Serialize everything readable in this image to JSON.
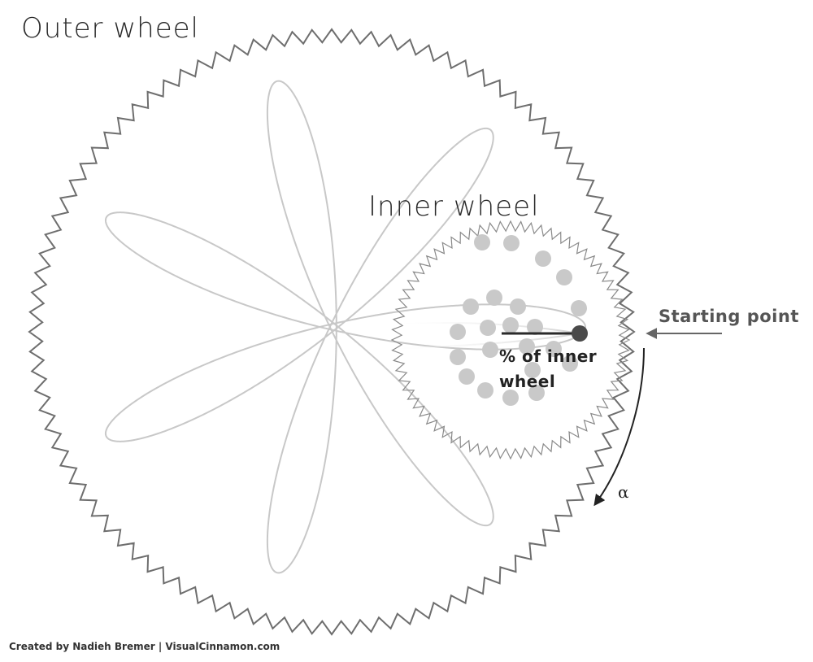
{
  "labels": {
    "outer_wheel": "Outer wheel",
    "inner_wheel": "Inner wheel",
    "starting_point": "Starting point",
    "percent_line1": "% of inner",
    "percent_line2": "wheel",
    "alpha": "α"
  },
  "credit": "Created by Nadieh Bremer | VisualCinnamon.com",
  "colors": {
    "gear": "#6e6e6e",
    "spirograph": "#c8c8c8",
    "dots": "#c9c9c9",
    "pen": "#4a4a4a",
    "arrow_start": "#666666",
    "arrow_alpha": "#222222"
  },
  "diagram": {
    "outer_teeth": 96,
    "inner_teeth": 72,
    "spirograph_lobes": 7,
    "hole_count": 22
  }
}
